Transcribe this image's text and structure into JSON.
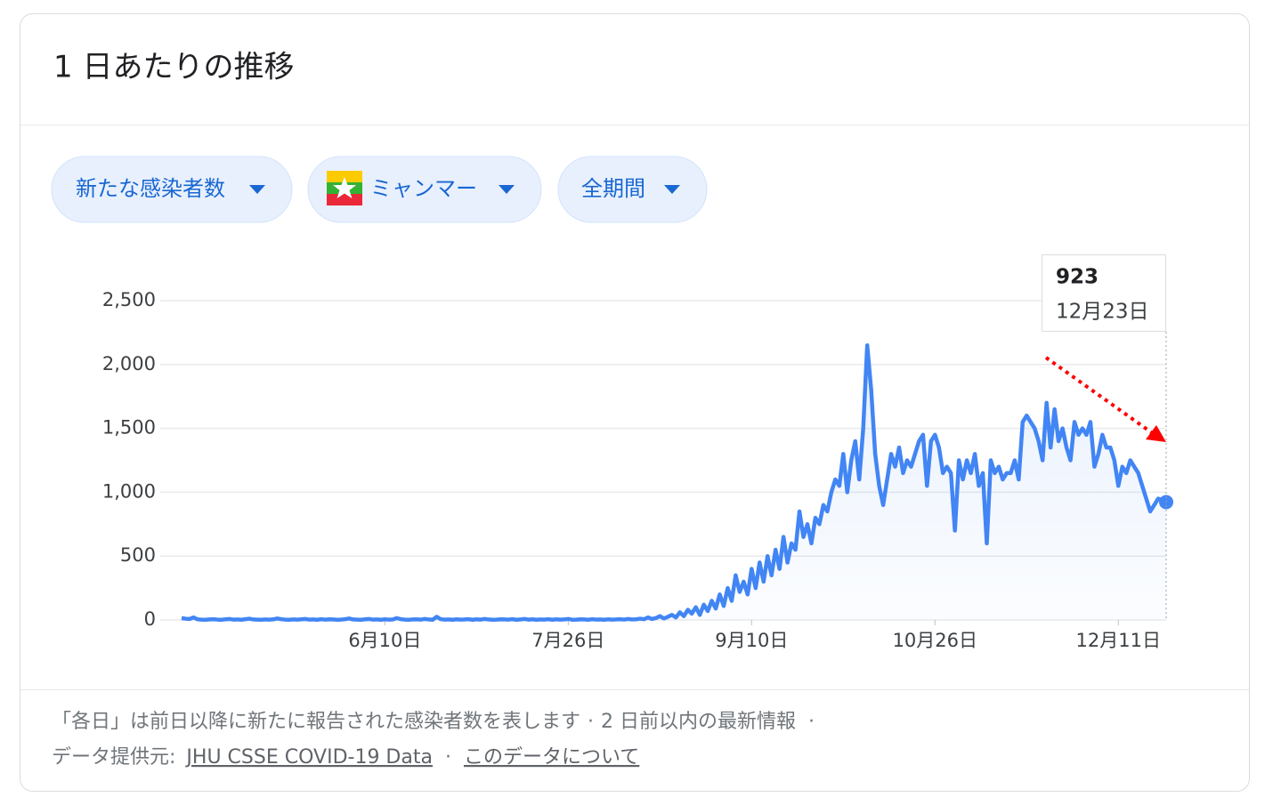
{
  "header": {
    "title": "1 日あたりの推移"
  },
  "filters": [
    "新たな感染者数",
    "ミャンマー",
    "全期間"
  ],
  "tooltip": {
    "value": 923,
    "date": "12月23日"
  },
  "chart_data": {
    "type": "line",
    "color": "#4285f4",
    "categories": [
      null,
      null,
      null,
      null,
      null,
      null,
      null,
      null,
      null,
      null,
      null,
      null,
      null,
      null,
      null,
      null,
      null,
      null,
      null,
      null,
      null,
      null,
      null,
      null,
      null,
      null,
      null,
      null,
      null,
      null,
      null,
      null,
      null,
      null,
      null,
      null,
      null,
      null,
      null,
      null,
      null,
      null,
      null,
      null,
      null,
      null,
      null,
      null,
      null,
      null,
      null,
      "6月10日",
      null,
      null,
      null,
      null,
      null,
      null,
      null,
      null,
      null,
      null,
      null,
      null,
      null,
      null,
      null,
      null,
      null,
      null,
      null,
      null,
      null,
      null,
      null,
      null,
      null,
      null,
      null,
      null,
      null,
      null,
      null,
      null,
      null,
      null,
      null,
      null,
      null,
      null,
      null,
      null,
      null,
      null,
      null,
      null,
      null,
      "7月26日",
      null,
      null,
      null,
      null,
      null,
      null,
      null,
      null,
      null,
      null,
      null,
      null,
      null,
      null,
      null,
      null,
      null,
      null,
      null,
      null,
      null,
      null,
      null,
      null,
      null,
      null,
      null,
      null,
      null,
      null,
      null,
      null,
      null,
      null,
      null,
      null,
      null,
      null,
      null,
      null,
      null,
      null,
      null,
      null,
      null,
      "9月10日",
      null,
      null,
      null,
      null,
      null,
      null,
      null,
      null,
      null,
      null,
      null,
      null,
      null,
      null,
      null,
      null,
      null,
      null,
      null,
      null,
      null,
      null,
      null,
      null,
      null,
      null,
      null,
      null,
      null,
      null,
      null,
      null,
      null,
      null,
      null,
      null,
      null,
      null,
      null,
      null,
      null,
      null,
      null,
      null,
      null,
      "10月26日",
      null,
      null,
      null,
      null,
      null,
      null,
      null,
      null,
      null,
      null,
      null,
      null,
      null,
      null,
      null,
      null,
      null,
      null,
      null,
      null,
      null,
      null,
      null,
      null,
      null,
      null,
      null,
      null,
      null,
      null,
      null,
      null,
      null,
      null,
      null,
      null,
      null,
      null,
      null,
      null,
      null,
      null,
      null,
      null,
      null,
      "12月11日",
      null,
      null,
      null,
      null,
      null,
      null,
      null,
      null,
      null,
      null,
      null,
      null
    ],
    "values": [
      15,
      10,
      8,
      20,
      5,
      3,
      2,
      4,
      6,
      3,
      2,
      5,
      8,
      3,
      4,
      2,
      6,
      10,
      4,
      3,
      2,
      4,
      3,
      5,
      12,
      6,
      3,
      2,
      4,
      3,
      5,
      8,
      3,
      4,
      2,
      6,
      3,
      5,
      4,
      2,
      3,
      6,
      12,
      4,
      3,
      2,
      5,
      8,
      3,
      4,
      2,
      5,
      3,
      4,
      15,
      6,
      3,
      2,
      4,
      5,
      3,
      8,
      4,
      2,
      25,
      6,
      3,
      4,
      2,
      5,
      3,
      4,
      6,
      2,
      5,
      3,
      8,
      4,
      2,
      3,
      5,
      4,
      3,
      6,
      2,
      4,
      8,
      3,
      5,
      2,
      4,
      3,
      6,
      2,
      5,
      3,
      4,
      8,
      2,
      3,
      5,
      4,
      2,
      6,
      3,
      4,
      2,
      5,
      3,
      4,
      6,
      3,
      8,
      4,
      5,
      10,
      6,
      20,
      8,
      15,
      30,
      12,
      25,
      40,
      20,
      60,
      30,
      80,
      50,
      100,
      40,
      120,
      70,
      150,
      90,
      200,
      110,
      250,
      150,
      350,
      220,
      300,
      200,
      400,
      250,
      450,
      300,
      500,
      350,
      550,
      400,
      650,
      450,
      600,
      550,
      850,
      650,
      750,
      600,
      800,
      750,
      900,
      850,
      1000,
      1100,
      1050,
      1300,
      1000,
      1250,
      1400,
      1100,
      1500,
      2150,
      1800,
      1300,
      1050,
      900,
      1100,
      1300,
      1200,
      1350,
      1150,
      1250,
      1200,
      1300,
      1400,
      1450,
      1050,
      1400,
      1450,
      1350,
      1150,
      1200,
      1150,
      700,
      1250,
      1100,
      1250,
      1150,
      1300,
      1050,
      1150,
      600,
      1250,
      1150,
      1200,
      1100,
      1150,
      1150,
      1250,
      1100,
      1550,
      1600,
      1550,
      1500,
      1400,
      1250,
      1700,
      1350,
      1650,
      1400,
      1500,
      1350,
      1250,
      1550,
      1450,
      1500,
      1450,
      1550,
      1200,
      1300,
      1450,
      1350,
      1350,
      1250,
      1050,
      1200,
      1150,
      1250,
      1200,
      1150,
      1050,
      950,
      850,
      900,
      950,
      940,
      923
    ],
    "ylim": [
      0,
      2500
    ],
    "yticks": [
      0,
      500,
      {
        "value": 1000,
        "label": "1,000"
      },
      {
        "value": 1500,
        "label": "1,500"
      },
      {
        "value": 2000,
        "label": "2,000"
      },
      {
        "value": 2500,
        "label": "2,500"
      }
    ],
    "grid": true
  },
  "footer": {
    "note": "「各日」は前日以降に新たに報告された感染者数を表します",
    "separator": "·",
    "updated": "2 日前以内の最新情報",
    "source_label": "データ提供元:",
    "source_link": "JHU CSSE COVID-19 Data",
    "about_link": "このデータについて"
  }
}
